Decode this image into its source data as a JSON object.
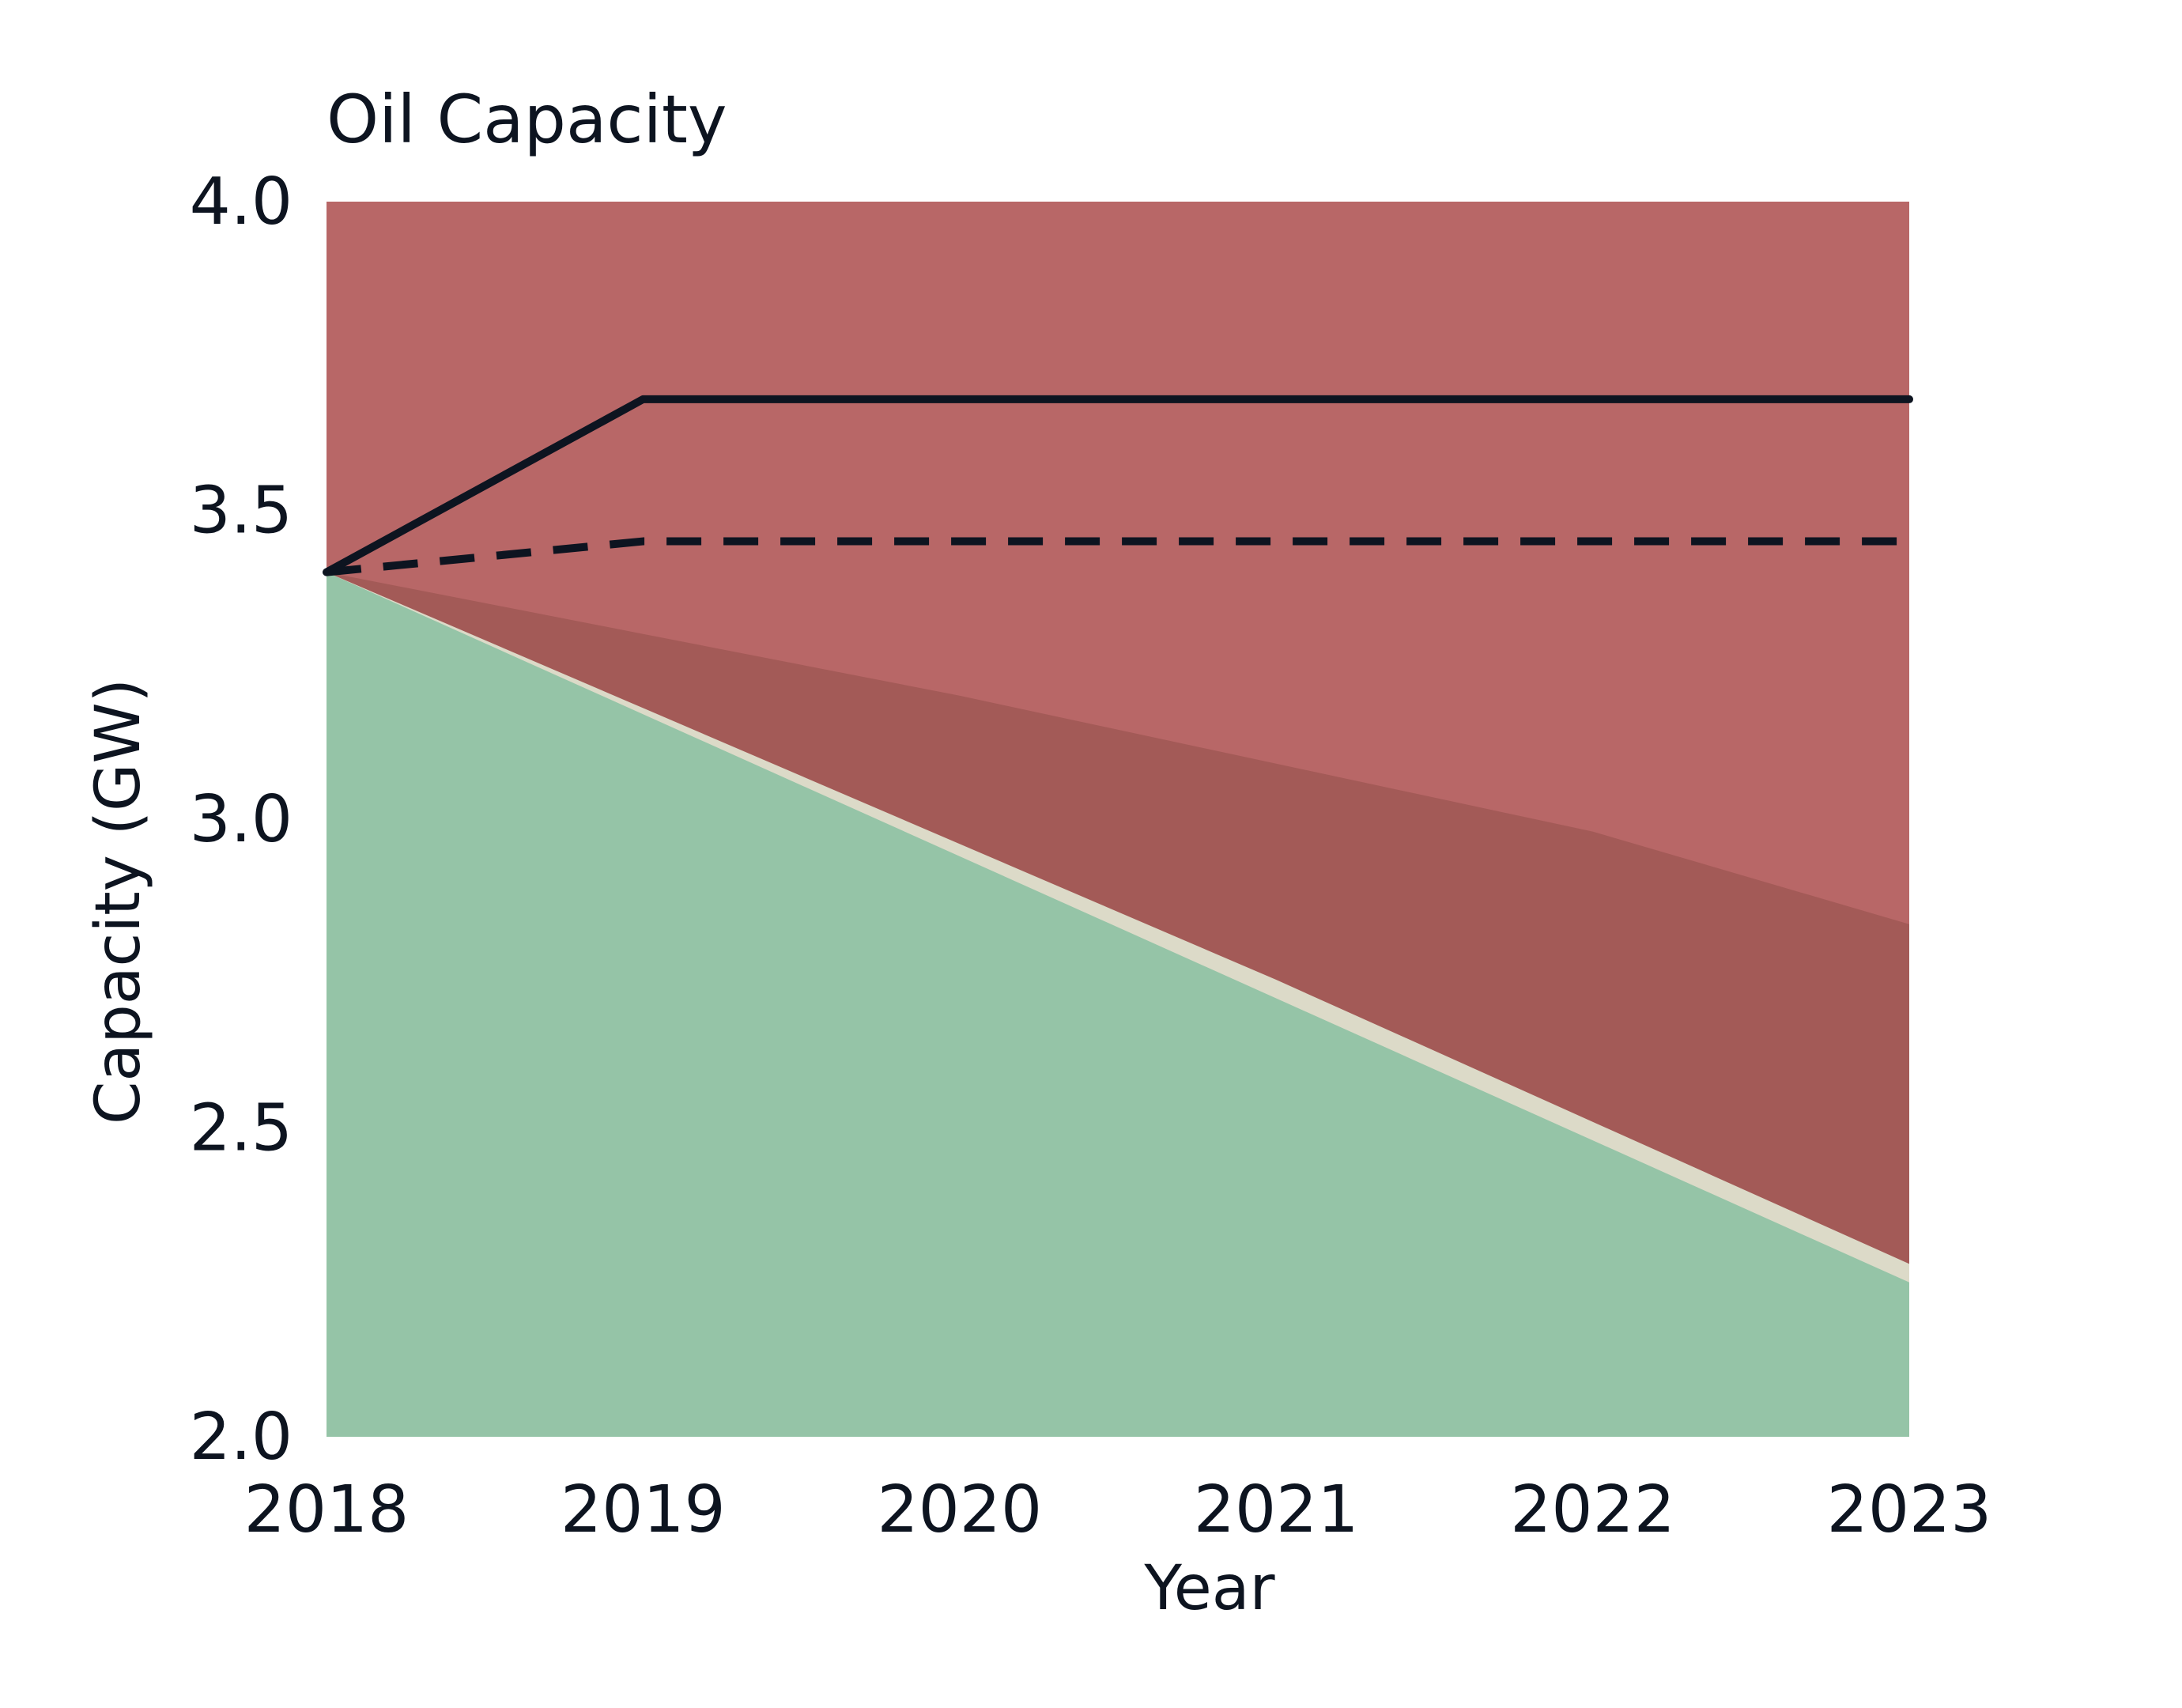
{
  "chart_data": {
    "type": "area",
    "title": "Oil Capacity",
    "xlabel": "Year",
    "ylabel": "Capacity (GW)",
    "x": [
      2018,
      2019,
      2020,
      2021,
      2022,
      2023
    ],
    "xlim": [
      2018,
      2023
    ],
    "ylim": [
      2.0,
      4.0
    ],
    "yticks": [
      2.0,
      2.5,
      3.0,
      3.5,
      4.0
    ],
    "ytick_labels": [
      "2.0",
      "2.5",
      "3.0",
      "3.5",
      "4.0"
    ],
    "xtick_labels": [
      "2018",
      "2019",
      "2020",
      "2021",
      "2022",
      "2023"
    ],
    "grid": false,
    "legend": "none",
    "areas": [
      {
        "color": "#95c4a7",
        "values": [
          3.4,
          3.17,
          2.94,
          2.71,
          2.48,
          2.25
        ]
      },
      {
        "color": "#dcdac8",
        "values": [
          3.4,
          3.18,
          2.96,
          2.74,
          2.51,
          2.28
        ]
      },
      {
        "color": "#a35a57",
        "values": [
          3.4,
          3.3,
          3.2,
          3.09,
          2.98,
          2.83
        ]
      },
      {
        "color": "#b86767",
        "values": [
          4.0,
          4.0,
          4.0,
          4.0,
          4.0,
          4.0
        ]
      }
    ],
    "lines": [
      {
        "style": "solid",
        "color": "#0d1420",
        "values": [
          3.4,
          3.68,
          3.68,
          3.68,
          3.68,
          3.68
        ]
      },
      {
        "style": "dashed",
        "color": "#0d1420",
        "values": [
          3.4,
          3.45,
          3.45,
          3.45,
          3.45,
          3.45
        ]
      }
    ]
  }
}
